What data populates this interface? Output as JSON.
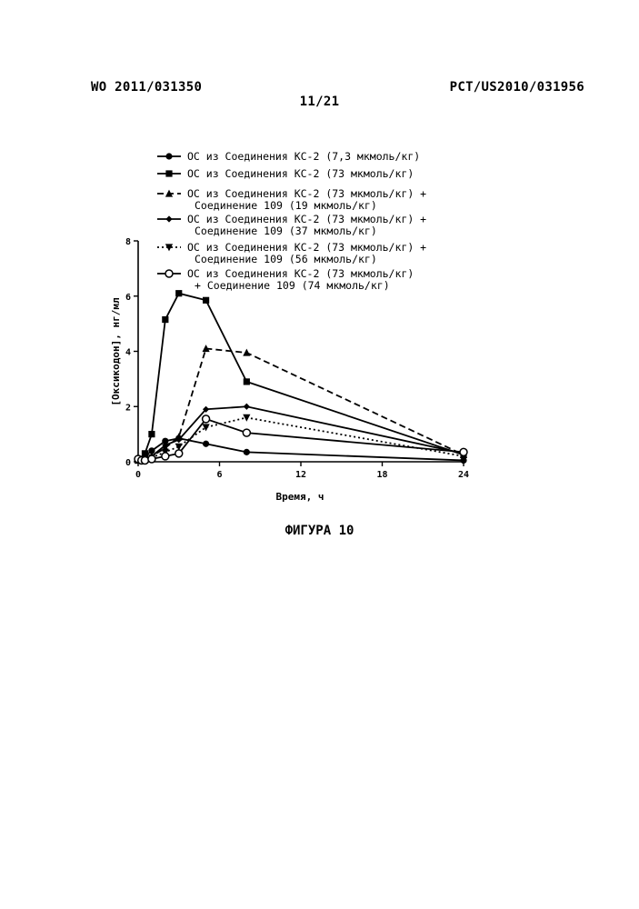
{
  "header": {
    "publication": "WO 2011/031350",
    "application": "PCT/US2010/031956",
    "page": "11/21"
  },
  "caption": "ФИГУРА 10",
  "chart_data": {
    "type": "line",
    "xlabel": "Время, ч",
    "ylabel": "[Оксикодон], нг/мл",
    "xlim": [
      0,
      24
    ],
    "ylim": [
      0,
      8
    ],
    "xticks": [
      0,
      6,
      12,
      18,
      24
    ],
    "yticks": [
      0,
      2,
      4,
      6,
      8
    ],
    "grid": false,
    "legend_position": "top",
    "series": [
      {
        "name": "ОС из Соединения КС-2 (7,3 мкмоль/кг)",
        "marker": "circle-filled",
        "linestyle": "solid",
        "x": [
          0,
          0.25,
          0.5,
          1,
          2,
          3,
          5,
          8,
          24
        ],
        "y": [
          0.05,
          0.1,
          0.2,
          0.4,
          0.75,
          0.85,
          0.65,
          0.35,
          0.05
        ]
      },
      {
        "name": "ОС из Соединения КС-2 (73 мкмоль/кг)",
        "marker": "square-filled",
        "linestyle": "solid",
        "x": [
          0,
          0.25,
          0.5,
          1,
          2,
          3,
          5,
          8,
          24
        ],
        "y": [
          0.05,
          0.1,
          0.3,
          1.0,
          5.15,
          6.1,
          5.85,
          2.9,
          0.25
        ]
      },
      {
        "name": "ОС из Соединения КС-2 (73 мкмоль/кг) + Соединение 109 (19 мкмоль/кг)",
        "marker": "triangle-up-filled",
        "linestyle": "dashed",
        "x": [
          0,
          0.25,
          0.5,
          1,
          2,
          3,
          5,
          8,
          24
        ],
        "y": [
          0.05,
          0.05,
          0.1,
          0.2,
          0.5,
          0.9,
          4.1,
          3.95,
          0.25
        ]
      },
      {
        "name": "ОС из Соединения КС-2 (73 мкмоль/кг) + Соединение 109 (37 мкмоль/кг)",
        "marker": "diamond-filled",
        "linestyle": "solid",
        "x": [
          0,
          0.25,
          0.5,
          1,
          2,
          3,
          5,
          8,
          24
        ],
        "y": [
          0.05,
          0.05,
          0.1,
          0.2,
          0.6,
          0.8,
          1.9,
          2.0,
          0.3
        ]
      },
      {
        "name": "ОС из Соединения КС-2 (73 мкмоль/кг) + Соединение 109 (56 мкмоль/кг)",
        "marker": "triangle-down-filled",
        "linestyle": "dotted",
        "x": [
          0,
          0.25,
          0.5,
          1,
          2,
          3,
          5,
          8,
          24
        ],
        "y": [
          0.05,
          0.05,
          0.05,
          0.15,
          0.35,
          0.55,
          1.25,
          1.6,
          0.2
        ]
      },
      {
        "name": "ОС из Соединения КС-2 (73 мкмоль/кг) + Соединение 109 (74 мкмоль/кг)",
        "marker": "circle-open",
        "linestyle": "solid",
        "x": [
          0,
          0.25,
          0.5,
          1,
          2,
          3,
          5,
          8,
          24
        ],
        "y": [
          0.1,
          0.05,
          0.05,
          0.1,
          0.2,
          0.3,
          1.55,
          1.05,
          0.35
        ]
      }
    ],
    "legend_lines": [
      [
        "ОС из Соединения КС-2 (7,3 мкмоль/кг)"
      ],
      [
        "ОС из Соединения КС-2 (73 мкмоль/кг)"
      ],
      [
        "ОС из Соединения КС-2 (73 мкмоль/кг) +",
        "Соединение 109 (19 мкмоль/кг)"
      ],
      [
        "ОС из Соединения КС-2 (73 мкмоль/кг) +",
        "Соединение 109 (37 мкмоль/кг)"
      ],
      [
        "ОС из Соединения КС-2 (73 мкмоль/кг) +",
        "Соединение 109 (56 мкмоль/кг)"
      ],
      [
        "ОС из Соединения КС-2 (73 мкмоль/кг)",
        "+ Соединение 109 (74 мкмоль/кг)"
      ]
    ]
  }
}
